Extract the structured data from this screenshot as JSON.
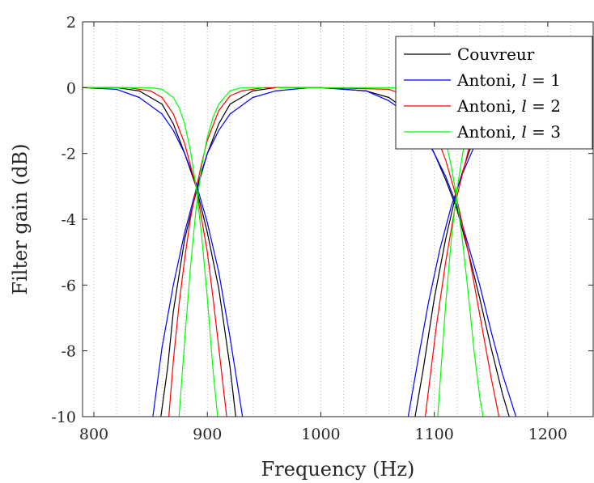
{
  "chart_data": {
    "type": "line",
    "xlabel": "Frequency (Hz)",
    "ylabel": "Filter gain (dB)",
    "xlim": [
      790,
      1240
    ],
    "ylim": [
      -10,
      2
    ],
    "xticks": [
      800,
      900,
      1000,
      1100,
      1200
    ],
    "xtick_labels": [
      "800",
      "900",
      "1000",
      "1100",
      "1200"
    ],
    "yticks": [
      -10,
      -8,
      -6,
      -4,
      -2,
      0,
      2
    ],
    "ytick_labels": [
      "-10",
      "-8",
      "-6",
      "-4",
      "-2",
      "0",
      "2"
    ],
    "minor_x_grid_step": 20,
    "grid": "minor-vertical-dotted",
    "legend_position": "top-right",
    "colors": {
      "couvreur": "#000000",
      "antoni_l1": "#0000ff",
      "antoni_l2": "#ff0000",
      "antoni_l3": "#00ff00"
    },
    "legend": [
      {
        "key": "couvreur",
        "text": "Couvreur",
        "suffix": ""
      },
      {
        "key": "antoni_l1",
        "text": "Antoni, ",
        "suffix": " = 1"
      },
      {
        "key": "antoni_l2",
        "text": "Antoni, ",
        "suffix": " = 2"
      },
      {
        "key": "antoni_l3",
        "text": "Antoni, ",
        "suffix": " = 3"
      }
    ],
    "legend_var": "l",
    "crossovers_hz": [
      891,
      1120
    ],
    "series": [
      {
        "name": "Couvreur",
        "key": "couvreur",
        "curves": [
          {
            "x": [
              790,
              820,
              840,
              860,
              870,
              880,
              890,
              900,
              910,
              920,
              925
            ],
            "y": [
              0,
              0,
              -0.1,
              -0.5,
              -1.1,
              -2.0,
              -3.0,
              -4.4,
              -6.1,
              -8.5,
              -10
            ]
          },
          {
            "x": [
              859,
              865,
              870,
              880,
              890,
              900,
              910,
              920,
              940,
              960,
              980
            ],
            "y": [
              -10,
              -8.5,
              -6.8,
              -4.6,
              -3.2,
              -2.0,
              -1.1,
              -0.5,
              -0.1,
              0,
              0
            ]
          },
          {
            "x": [
              960,
              1000,
              1040,
              1060,
              1080,
              1090,
              1100,
              1110,
              1120,
              1130,
              1140,
              1150,
              1160,
              1166
            ],
            "y": [
              0,
              0,
              -0.1,
              -0.3,
              -0.8,
              -1.3,
              -2.0,
              -2.8,
              -3.7,
              -5.0,
              -6.4,
              -7.9,
              -9.3,
              -10
            ]
          },
          {
            "x": [
              1083,
              1090,
              1100,
              1110,
              1120,
              1130,
              1140,
              1160,
              1180,
              1200,
              1240
            ],
            "y": [
              -10,
              -8.6,
              -6.4,
              -4.6,
              -3.1,
              -2.0,
              -1.2,
              -0.4,
              -0.1,
              0,
              0
            ]
          }
        ]
      },
      {
        "name": "Antoni, l = 1",
        "key": "antoni_l1",
        "curves": [
          {
            "x": [
              790,
              820,
              840,
              860,
              870,
              880,
              890,
              900,
              910,
              920,
              931
            ],
            "y": [
              0,
              -0.05,
              -0.3,
              -0.8,
              -1.3,
              -2.0,
              -2.9,
              -4.1,
              -5.6,
              -7.6,
              -10
            ]
          },
          {
            "x": [
              852,
              860,
              870,
              880,
              890,
              900,
              910,
              920,
              940,
              960,
              990
            ],
            "y": [
              -10,
              -7.9,
              -6.0,
              -4.4,
              -3.1,
              -2.0,
              -1.3,
              -0.8,
              -0.3,
              -0.1,
              0
            ]
          },
          {
            "x": [
              960,
              1000,
              1040,
              1060,
              1080,
              1090,
              1100,
              1110,
              1120,
              1130,
              1140,
              1150,
              1160,
              1172
            ],
            "y": [
              0,
              0,
              -0.1,
              -0.4,
              -0.9,
              -1.4,
              -2.0,
              -2.7,
              -3.6,
              -4.8,
              -6.0,
              -7.4,
              -8.7,
              -10
            ]
          },
          {
            "x": [
              1077,
              1085,
              1095,
              1105,
              1115,
              1125,
              1135,
              1150,
              1170,
              1200,
              1240
            ],
            "y": [
              -10,
              -8.4,
              -6.5,
              -4.9,
              -3.6,
              -2.6,
              -1.8,
              -0.9,
              -0.3,
              -0.05,
              0
            ]
          }
        ]
      },
      {
        "name": "Antoni, l = 2",
        "key": "antoni_l2",
        "curves": [
          {
            "x": [
              790,
              830,
              850,
              860,
              870,
              880,
              890,
              900,
              905,
              910,
              917
            ],
            "y": [
              0,
              0,
              -0.1,
              -0.3,
              -0.8,
              -1.7,
              -3.0,
              -5.0,
              -6.4,
              -7.9,
              -10
            ]
          },
          {
            "x": [
              866,
              870,
              875,
              880,
              885,
              890,
              895,
              900,
              910,
              920,
              930,
              950,
              970
            ],
            "y": [
              -10,
              -8.3,
              -6.6,
              -5.2,
              -4.0,
              -3.1,
              -2.3,
              -1.6,
              -0.7,
              -0.25,
              -0.1,
              0,
              0
            ]
          },
          {
            "x": [
              960,
              1000,
              1060,
              1080,
              1090,
              1100,
              1110,
              1120,
              1130,
              1140,
              1150,
              1157
            ],
            "y": [
              0,
              0,
              -0.05,
              -0.3,
              -0.7,
              -1.3,
              -2.2,
              -3.4,
              -5.0,
              -6.9,
              -8.8,
              -10
            ]
          },
          {
            "x": [
              1092,
              1097,
              1102,
              1110,
              1120,
              1130,
              1140,
              1150,
              1170,
              1200,
              1240
            ],
            "y": [
              -10,
              -8.6,
              -7.2,
              -5.3,
              -3.3,
              -1.9,
              -1.0,
              -0.5,
              -0.1,
              0,
              0
            ]
          }
        ]
      },
      {
        "name": "Antoni, l = 3",
        "key": "antoni_l3",
        "curves": [
          {
            "x": [
              790,
              850,
              860,
              870,
              875,
              880,
              885,
              890,
              895,
              900,
              905,
              909
            ],
            "y": [
              0,
              0,
              -0.05,
              -0.3,
              -0.6,
              -1.1,
              -1.9,
              -3.0,
              -4.5,
              -6.4,
              -8.6,
              -10
            ]
          },
          {
            "x": [
              875,
              880,
              885,
              890,
              895,
              900,
              905,
              910,
              920,
              930,
              950
            ],
            "y": [
              -10,
              -7.7,
              -5.5,
              -3.7,
              -2.4,
              -1.5,
              -0.9,
              -0.5,
              -0.1,
              0,
              0
            ]
          },
          {
            "x": [
              960,
              1060,
              1080,
              1090,
              1100,
              1105,
              1110,
              1115,
              1120,
              1125,
              1130,
              1135,
              1140,
              1143
            ],
            "y": [
              0,
              0,
              -0.05,
              -0.2,
              -0.6,
              -1.0,
              -1.6,
              -2.4,
              -3.4,
              -4.7,
              -6.3,
              -8.0,
              -9.4,
              -10
            ]
          },
          {
            "x": [
              1103,
              1106,
              1110,
              1115,
              1120,
              1125,
              1130,
              1135,
              1145,
              1160,
              1240
            ],
            "y": [
              -10,
              -8.5,
              -6.6,
              -4.6,
              -3.1,
              -2.0,
              -1.2,
              -0.7,
              -0.2,
              0,
              0
            ]
          }
        ]
      }
    ]
  }
}
